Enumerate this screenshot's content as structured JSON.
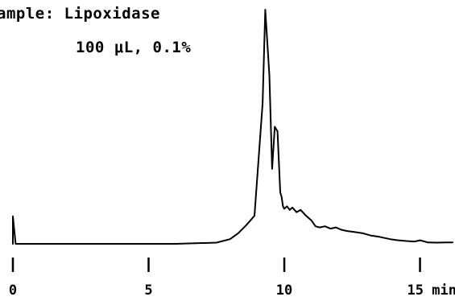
{
  "chart_data": {
    "type": "line",
    "title_line1": "ample: Lipoxidase",
    "title_line2": "100 μL, 0.1%",
    "xlabel": "",
    "ylabel": "",
    "x_unit": "min",
    "xlim": [
      0,
      16.2
    ],
    "x_ticks": [
      0,
      5,
      10,
      15
    ],
    "x_tick_labels": [
      "0",
      "5",
      "10",
      "15 min"
    ],
    "grid": false,
    "legend": "none",
    "line_color": "#000000",
    "series": [
      {
        "x": [
          0.0,
          0.0,
          0.1,
          2.0,
          4.0,
          6.0,
          7.5,
          8.0,
          8.3,
          8.6,
          8.9,
          9.2,
          9.3,
          9.45,
          9.55,
          9.65,
          9.75,
          9.85,
          9.9,
          9.95,
          10.0,
          10.1,
          10.2,
          10.3,
          10.45,
          10.6,
          10.8,
          11.0,
          11.15,
          11.3,
          11.5,
          11.7,
          11.9,
          12.1,
          12.3,
          12.6,
          12.9,
          13.2,
          13.5,
          13.9,
          14.2,
          14.5,
          14.8,
          15.0,
          15.3,
          15.6,
          16.0,
          16.2
        ],
        "y": [
          0.0,
          0.118,
          0.0,
          0.0,
          0.0,
          0.0,
          0.005,
          0.02,
          0.045,
          0.08,
          0.12,
          0.6,
          1.0,
          0.72,
          0.32,
          0.5,
          0.48,
          0.22,
          0.2,
          0.16,
          0.15,
          0.16,
          0.145,
          0.155,
          0.135,
          0.145,
          0.12,
          0.1,
          0.075,
          0.07,
          0.075,
          0.065,
          0.07,
          0.06,
          0.055,
          0.05,
          0.045,
          0.035,
          0.03,
          0.02,
          0.015,
          0.012,
          0.01,
          0.015,
          0.006,
          0.005,
          0.006,
          0.006
        ]
      }
    ]
  }
}
